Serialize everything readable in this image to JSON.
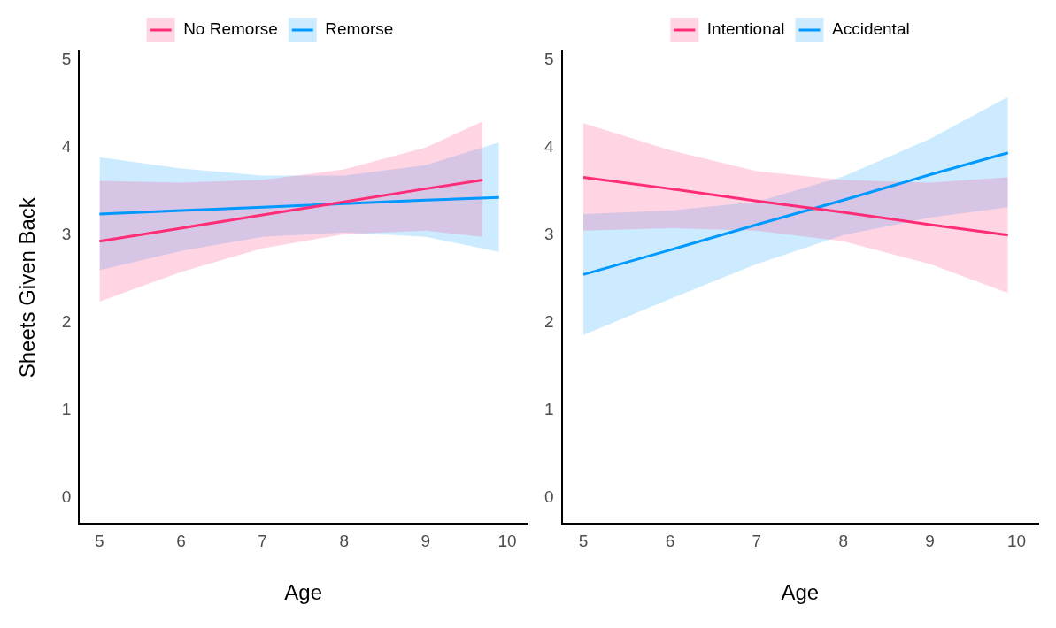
{
  "chart_data": [
    {
      "type": "line",
      "ylabel": "Sheets Given Back",
      "xlabel": "Age",
      "xlim": [
        4.75,
        10.25
      ],
      "xticks": [
        5,
        6,
        7,
        8,
        9,
        10
      ],
      "ylim": [
        -0.3,
        5.1
      ],
      "yticks": [
        0,
        1,
        2,
        3,
        4,
        5
      ],
      "grid": false,
      "legend": "top",
      "marker": "none",
      "line_style": "solid",
      "series": [
        {
          "name": "No Remorse",
          "color": "#ff2d78",
          "x": [
            5,
            6,
            7,
            8,
            9,
            9.7
          ],
          "values": [
            2.93,
            3.08,
            3.23,
            3.38,
            3.53,
            3.63
          ],
          "lower": [
            2.24,
            2.58,
            2.85,
            3.01,
            3.05,
            2.98
          ],
          "upper": [
            3.62,
            3.6,
            3.63,
            3.75,
            4.0,
            4.3
          ]
        },
        {
          "name": "Remorse",
          "color": "#0099ff",
          "x": [
            5,
            6,
            7,
            8,
            9,
            9.9
          ],
          "values": [
            3.24,
            3.28,
            3.32,
            3.36,
            3.4,
            3.43
          ],
          "lower": [
            2.6,
            2.82,
            2.98,
            3.03,
            2.98,
            2.81
          ],
          "upper": [
            3.89,
            3.76,
            3.68,
            3.68,
            3.8,
            4.06
          ]
        }
      ]
    },
    {
      "type": "line",
      "xlabel": "Age",
      "xlim": [
        4.75,
        10.25
      ],
      "xticks": [
        5,
        6,
        7,
        8,
        9,
        10
      ],
      "ylim": [
        -0.3,
        5.1
      ],
      "yticks": [
        0,
        1,
        2,
        3,
        4,
        5
      ],
      "grid": false,
      "legend": "top",
      "marker": "none",
      "line_style": "solid",
      "series": [
        {
          "name": "Intentional",
          "color": "#ff2d78",
          "x": [
            5,
            6,
            7,
            8,
            9,
            9.9
          ],
          "values": [
            3.66,
            3.53,
            3.39,
            3.26,
            3.12,
            3.0
          ],
          "lower": [
            3.05,
            3.08,
            3.05,
            2.93,
            2.67,
            2.34
          ],
          "upper": [
            4.28,
            3.97,
            3.73,
            3.63,
            3.6,
            3.66
          ]
        },
        {
          "name": "Accidental",
          "color": "#0099ff",
          "x": [
            5,
            6,
            7,
            8,
            9,
            9.9
          ],
          "values": [
            2.55,
            2.83,
            3.12,
            3.4,
            3.69,
            3.94
          ],
          "lower": [
            1.86,
            2.27,
            2.67,
            3.0,
            3.2,
            3.32
          ],
          "upper": [
            3.24,
            3.28,
            3.38,
            3.67,
            4.1,
            4.58
          ]
        }
      ]
    }
  ]
}
